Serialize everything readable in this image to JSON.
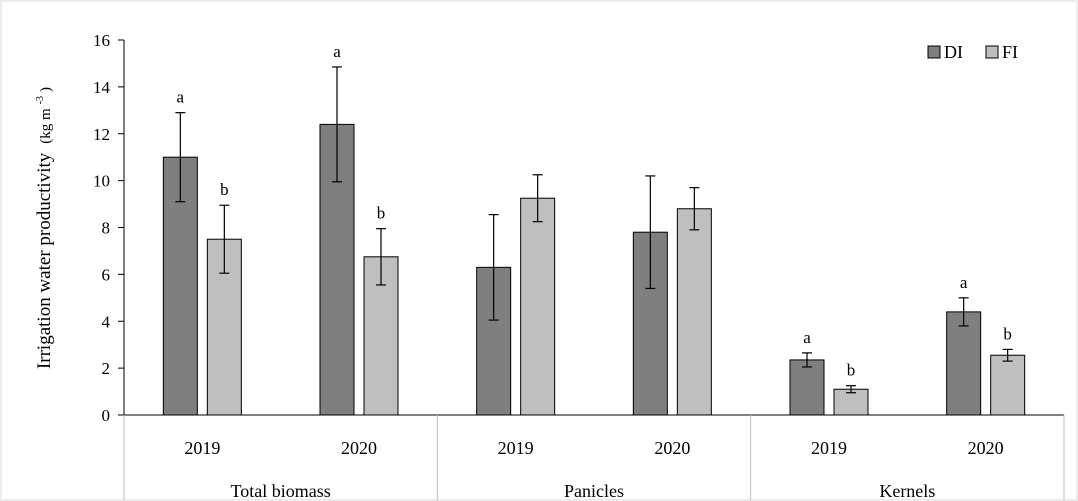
{
  "chart_data": {
    "type": "bar",
    "ylabel": "Irrigation water productivity",
    "ylabel_unit": "(kg m",
    "ylabel_unit_sup": "-3",
    "ylabel_unit_close": ")",
    "ylim": [
      0,
      16
    ],
    "yticks": [
      0,
      2,
      4,
      6,
      8,
      10,
      12,
      14,
      16
    ],
    "groups": [
      {
        "label": "Total biomass",
        "subcategories": [
          "2019",
          "2020"
        ]
      },
      {
        "label": "Panicles",
        "subcategories": [
          "2019",
          "2020"
        ]
      },
      {
        "label": "Kernels",
        "subcategories": [
          "2019",
          "2020"
        ]
      }
    ],
    "series": [
      {
        "name": "DI",
        "color": "#7f7f7f",
        "values": [
          11.0,
          12.4,
          6.3,
          7.8,
          2.35,
          4.4
        ],
        "errors": [
          1.9,
          2.45,
          2.25,
          2.4,
          0.3,
          0.6
        ],
        "sig": [
          "a",
          "a",
          "",
          "",
          "a",
          "a"
        ]
      },
      {
        "name": "FI",
        "color": "#bfbfbf",
        "values": [
          7.5,
          6.75,
          9.25,
          8.8,
          1.1,
          2.55
        ],
        "errors": [
          1.45,
          1.2,
          1.0,
          0.9,
          0.15,
          0.25
        ],
        "sig": [
          "b",
          "b",
          "",
          "",
          "b",
          "b"
        ]
      }
    ],
    "legend_position": "top-right",
    "grid": false
  }
}
